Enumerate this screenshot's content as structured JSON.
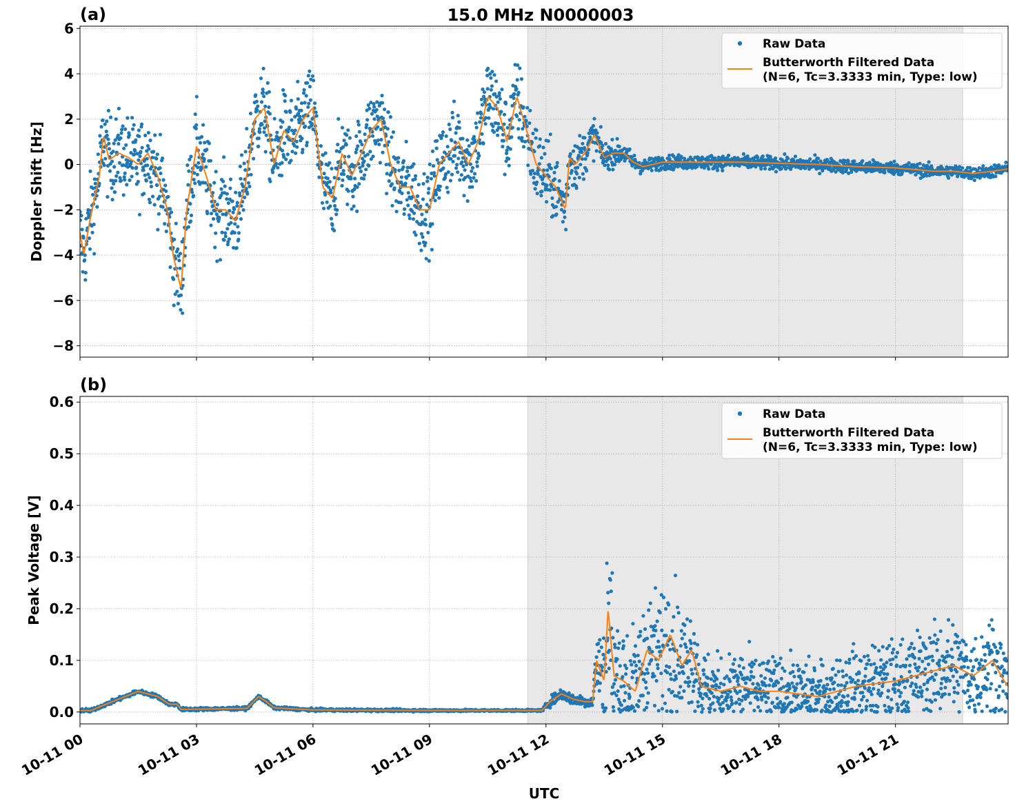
{
  "figure": {
    "title": "15.0 MHz N0000003",
    "xlabel": "UTC"
  },
  "colors": {
    "raw": "#1f77b4",
    "filtered": "#ff7f0e",
    "shade": "#e8e8e8",
    "grid": "#b0b0b0"
  },
  "chart_data": [
    {
      "type": "scatter",
      "panel_label": "(a)",
      "title": "15.0 MHz N0000003",
      "ylabel": "Doppler Shift [Hz]",
      "xlabel": "",
      "x_units": "hours since 10-11 00 UTC",
      "xlim": [
        0,
        23.9
      ],
      "ylim": [
        -8.5,
        6.1
      ],
      "yticks": [
        -8,
        -6,
        -4,
        -2,
        0,
        2,
        4,
        6
      ],
      "ytick_labels": [
        "−8",
        "−6",
        "−4",
        "−2",
        "0",
        "2",
        "4",
        "6"
      ],
      "xticks": [
        0,
        3,
        6,
        9,
        12,
        15,
        18,
        21
      ],
      "xtick_labels": [
        "10-11 00",
        "10-11 03",
        "10-11 06",
        "10-11 09",
        "10-11 12",
        "10-11 15",
        "10-11 18",
        "10-11 21"
      ],
      "shaded_range": [
        11.53,
        22.73
      ],
      "grid": true,
      "legend": {
        "placement": "top-right",
        "entries": [
          "Raw Data",
          "Butterworth Filtered Data",
          "(N=6, Tc=3.3333 min, Type: low)"
        ]
      },
      "filtered": {
        "x": [
          0,
          0.1,
          0.25,
          0.5,
          0.6,
          0.75,
          1,
          1.25,
          1.5,
          1.75,
          2,
          2.25,
          2.4,
          2.6,
          2.75,
          3,
          3.25,
          3.5,
          3.75,
          4,
          4.25,
          4.5,
          4.75,
          5,
          5.25,
          5.5,
          5.75,
          6,
          6.25,
          6.5,
          6.75,
          7,
          7.25,
          7.5,
          7.75,
          8,
          8.25,
          8.5,
          8.75,
          9,
          9.25,
          9.5,
          9.75,
          10,
          10.25,
          10.5,
          10.75,
          11,
          11.25,
          11.5,
          11.75,
          12,
          12.25,
          12.5,
          12.6,
          12.75,
          13,
          13.25,
          13.5,
          13.75,
          14,
          14.25,
          14.5,
          15,
          16,
          17,
          18,
          19,
          20,
          21,
          22,
          22.5,
          23,
          23.5,
          23.9
        ],
        "y": [
          -3,
          -4,
          -2.5,
          -0.5,
          1.3,
          0.2,
          0.5,
          0.3,
          0,
          0.5,
          -0.5,
          -2,
          -4,
          -5.5,
          -2,
          0.8,
          -0.5,
          -2,
          -2,
          -2.5,
          -1,
          2,
          2.5,
          0,
          1.5,
          1,
          2,
          2.5,
          -1,
          -1.5,
          0.5,
          -0.5,
          0.5,
          1.5,
          2,
          0,
          -1,
          -1,
          -2,
          -2,
          0,
          0.5,
          1,
          0,
          1,
          3,
          2.5,
          1,
          3,
          1.5,
          0,
          -0.5,
          -1,
          -2,
          0.3,
          0,
          0.5,
          1.3,
          0.3,
          0.5,
          0.5,
          0.1,
          -0.1,
          0.1,
          0.1,
          0.1,
          0.05,
          0,
          -0.1,
          -0.15,
          -0.3,
          -0.3,
          -0.4,
          -0.3,
          -0.2
        ]
      },
      "raw_spread": {
        "x": [
          0,
          11.8,
          12.6,
          13.5,
          14.5,
          23.9
        ],
        "y": [
          1.3,
          1.3,
          0.9,
          0.45,
          0.22,
          0.2
        ]
      }
    },
    {
      "type": "scatter",
      "panel_label": "(b)",
      "title": "",
      "ylabel": "Peak Voltage [V]",
      "xlabel": "UTC",
      "x_units": "hours since 10-11 00 UTC",
      "xlim": [
        0,
        23.9
      ],
      "ylim": [
        -0.023,
        0.611
      ],
      "yticks": [
        0,
        0.1,
        0.2,
        0.3,
        0.4,
        0.5,
        0.6
      ],
      "ytick_labels": [
        "0.0",
        "0.1",
        "0.2",
        "0.3",
        "0.4",
        "0.5",
        "0.6"
      ],
      "xticks": [
        0,
        3,
        6,
        9,
        12,
        15,
        18,
        21
      ],
      "xtick_labels": [
        "10-11 00",
        "10-11 03",
        "10-11 06",
        "10-11 09",
        "10-11 12",
        "10-11 15",
        "10-11 18",
        "10-11 21"
      ],
      "shaded_range": [
        11.53,
        22.73
      ],
      "grid": true,
      "legend": {
        "placement": "top-right",
        "entries": [
          "Raw Data",
          "Butterworth Filtered Data",
          "(N=6, Tc=3.3333 min, Type: low)"
        ]
      },
      "filtered": {
        "x": [
          0,
          0.3,
          0.5,
          1,
          1.5,
          2,
          2.3,
          2.5,
          2.6,
          4.3,
          4.6,
          4.8,
          5,
          6,
          9,
          11.9,
          12.1,
          12.4,
          12.7,
          13,
          13.2,
          13.3,
          13.5,
          13.6,
          13.75,
          14,
          14.3,
          14.6,
          14.9,
          15.2,
          15.5,
          15.75,
          16,
          16.5,
          17,
          17.5,
          18,
          18.5,
          19,
          19.5,
          20,
          20.5,
          21,
          21.5,
          22,
          22.5,
          23,
          23.5,
          23.8,
          23.9
        ],
        "y": [
          0.003,
          0.003,
          0.01,
          0.025,
          0.04,
          0.03,
          0.015,
          0.015,
          0.005,
          0.007,
          0.03,
          0.02,
          0.008,
          0.004,
          0.003,
          0.003,
          0.02,
          0.035,
          0.025,
          0.02,
          0.02,
          0.1,
          0.06,
          0.2,
          0.07,
          0.06,
          0.04,
          0.12,
          0.1,
          0.15,
          0.09,
          0.12,
          0.05,
          0.04,
          0.05,
          0.04,
          0.04,
          0.035,
          0.03,
          0.04,
          0.05,
          0.055,
          0.06,
          0.07,
          0.08,
          0.09,
          0.07,
          0.1,
          0.06,
          0.05
        ]
      },
      "raw_spread": {
        "x": [
          0,
          11.9,
          12.1,
          13.2,
          13.6,
          16,
          23.9
        ],
        "y": [
          0.004,
          0.002,
          0.01,
          0.012,
          0.12,
          0.06,
          0.07
        ]
      }
    }
  ]
}
